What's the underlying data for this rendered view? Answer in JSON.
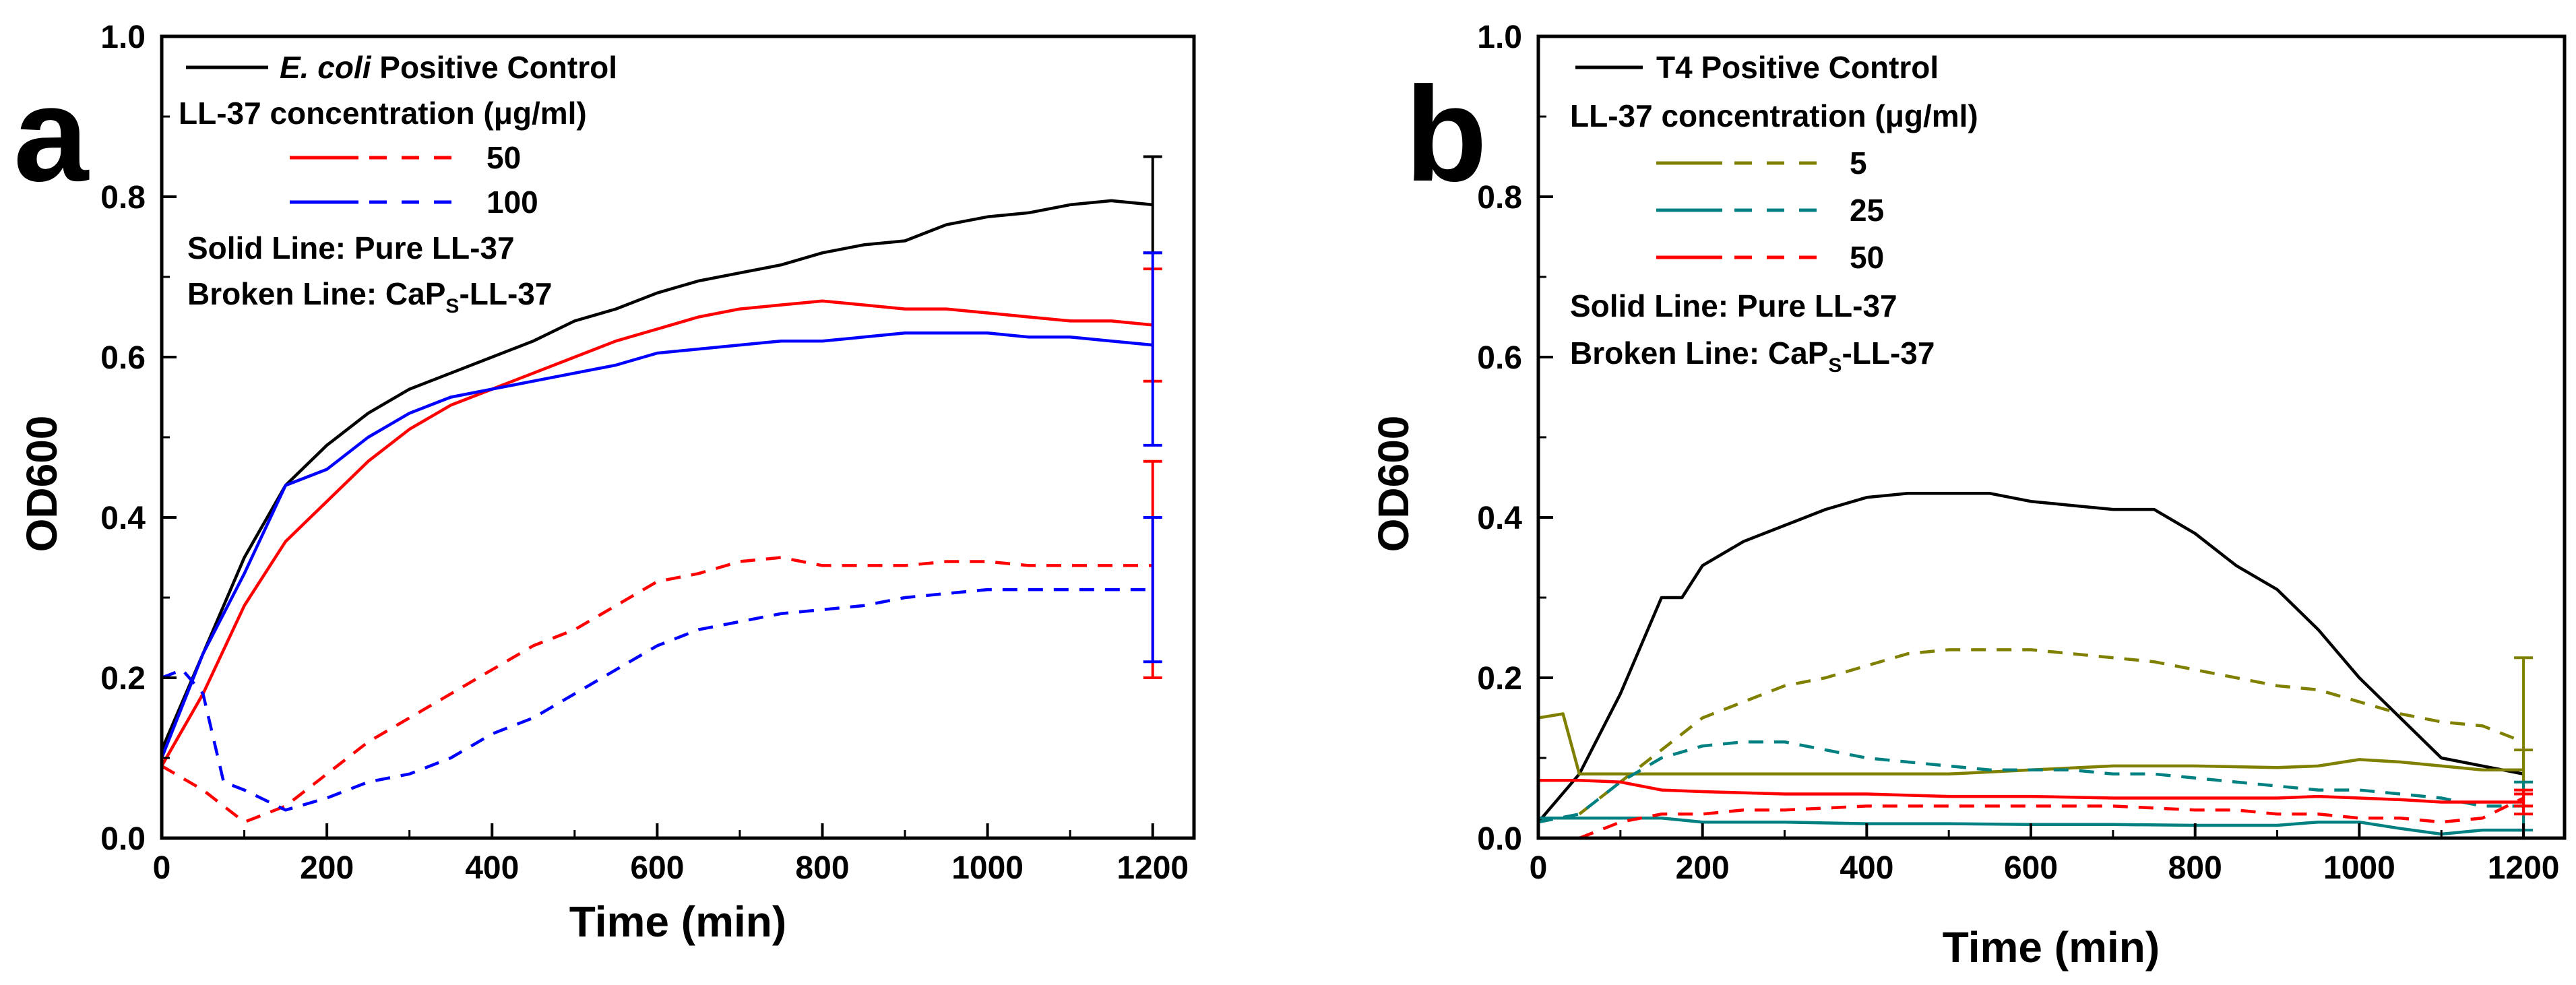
{
  "chart_data": [
    {
      "type": "line",
      "panel": "a",
      "xlabel": "Time (min)",
      "ylabel": "OD600",
      "xlim": [
        0,
        1250
      ],
      "ylim": [
        0,
        1.0
      ],
      "xticks": [
        "0",
        "200",
        "400",
        "600",
        "800",
        "1000",
        "1200"
      ],
      "xtick_values": [
        0,
        200,
        400,
        600,
        800,
        1000,
        1200
      ],
      "yticks": [
        "0.0",
        "0.2",
        "0.4",
        "0.6",
        "0.8",
        "1.0"
      ],
      "ytick_values": [
        0,
        0.2,
        0.4,
        0.6,
        0.8,
        1.0
      ],
      "legend": {
        "control_pre": "",
        "control_em": "E. coli",
        "control_post": " Positive Control",
        "header": "LL-37 concentration (μg/ml)",
        "entries": [
          "50",
          "100"
        ],
        "note_solid": "Solid Line: Pure LL-37",
        "note_broken_pre": "Broken Line: CaP",
        "note_broken_sub": "S",
        "note_broken_post": "-LL-37"
      },
      "series": [
        {
          "name": "E. coli Positive Control",
          "color": "#000000",
          "style": "solid",
          "x": [
            0,
            50,
            100,
            150,
            200,
            250,
            300,
            350,
            400,
            450,
            500,
            550,
            600,
            650,
            700,
            750,
            800,
            850,
            900,
            950,
            1000,
            1050,
            1100,
            1150,
            1200
          ],
          "y": [
            0.11,
            0.23,
            0.35,
            0.44,
            0.49,
            0.53,
            0.56,
            0.58,
            0.6,
            0.62,
            0.645,
            0.66,
            0.68,
            0.695,
            0.705,
            0.715,
            0.73,
            0.74,
            0.745,
            0.765,
            0.775,
            0.78,
            0.79,
            0.795,
            0.79
          ]
        },
        {
          "name": "50 Pure LL-37",
          "color": "#ff0000",
          "style": "solid",
          "x": [
            0,
            50,
            100,
            150,
            200,
            250,
            300,
            350,
            400,
            450,
            500,
            550,
            600,
            650,
            700,
            750,
            800,
            850,
            900,
            950,
            1000,
            1050,
            1100,
            1150,
            1200
          ],
          "y": [
            0.09,
            0.18,
            0.29,
            0.37,
            0.42,
            0.47,
            0.51,
            0.54,
            0.56,
            0.58,
            0.6,
            0.62,
            0.635,
            0.65,
            0.66,
            0.665,
            0.67,
            0.665,
            0.66,
            0.66,
            0.655,
            0.65,
            0.645,
            0.645,
            0.64
          ]
        },
        {
          "name": "100 Pure LL-37",
          "color": "#0000ff",
          "style": "solid",
          "x": [
            0,
            50,
            100,
            150,
            200,
            250,
            300,
            350,
            400,
            450,
            500,
            550,
            600,
            650,
            700,
            750,
            800,
            850,
            900,
            950,
            1000,
            1050,
            1100,
            1150,
            1200
          ],
          "y": [
            0.1,
            0.23,
            0.33,
            0.44,
            0.46,
            0.5,
            0.53,
            0.55,
            0.56,
            0.57,
            0.58,
            0.59,
            0.605,
            0.61,
            0.615,
            0.62,
            0.62,
            0.625,
            0.63,
            0.63,
            0.63,
            0.625,
            0.625,
            0.62,
            0.615
          ]
        },
        {
          "name": "50 CaPS-LL-37",
          "color": "#ff0000",
          "style": "dashed",
          "x": [
            0,
            50,
            100,
            150,
            200,
            250,
            300,
            350,
            400,
            450,
            500,
            550,
            600,
            650,
            700,
            750,
            800,
            850,
            900,
            950,
            1000,
            1050,
            1100,
            1150,
            1200
          ],
          "y": [
            0.09,
            0.06,
            0.02,
            0.04,
            0.08,
            0.12,
            0.15,
            0.18,
            0.21,
            0.24,
            0.26,
            0.29,
            0.32,
            0.33,
            0.345,
            0.35,
            0.34,
            0.34,
            0.34,
            0.345,
            0.345,
            0.34,
            0.34,
            0.34,
            0.34
          ]
        },
        {
          "name": "100 CaPS-LL-37",
          "color": "#0000ff",
          "style": "dashed",
          "x": [
            0,
            25,
            50,
            75,
            100,
            150,
            200,
            250,
            300,
            350,
            400,
            450,
            500,
            550,
            600,
            650,
            700,
            750,
            800,
            850,
            900,
            950,
            1000,
            1050,
            1100,
            1150,
            1200
          ],
          "y": [
            0.2,
            0.21,
            0.18,
            0.07,
            0.06,
            0.035,
            0.05,
            0.07,
            0.08,
            0.1,
            0.13,
            0.15,
            0.18,
            0.21,
            0.24,
            0.26,
            0.27,
            0.28,
            0.285,
            0.29,
            0.3,
            0.305,
            0.31,
            0.31,
            0.31,
            0.31,
            0.31
          ]
        }
      ],
      "error_bars": [
        {
          "x": 1200,
          "low": 0.73,
          "high": 0.85,
          "color": "#000000"
        },
        {
          "x": 1200,
          "low": 0.57,
          "high": 0.71,
          "color": "#ff0000"
        },
        {
          "x": 1200,
          "low": 0.49,
          "high": 0.73,
          "color": "#0000ff"
        },
        {
          "x": 1200,
          "low": 0.2,
          "high": 0.47,
          "color": "#ff0000"
        },
        {
          "x": 1200,
          "low": 0.22,
          "high": 0.4,
          "color": "#0000ff"
        }
      ]
    },
    {
      "type": "line",
      "panel": "b",
      "xlabel": "Time (min)",
      "ylabel": "OD600",
      "xlim": [
        0,
        1250
      ],
      "ylim": [
        0,
        1.0
      ],
      "xticks": [
        "0",
        "200",
        "400",
        "600",
        "800",
        "1000",
        "1200"
      ],
      "xtick_values": [
        0,
        200,
        400,
        600,
        800,
        1000,
        1200
      ],
      "yticks": [
        "0.0",
        "0.2",
        "0.4",
        "0.6",
        "0.8",
        "1.0"
      ],
      "ytick_values": [
        0,
        0.2,
        0.4,
        0.6,
        0.8,
        1.0
      ],
      "legend": {
        "control_pre": "T4 Positive Control",
        "control_em": "",
        "control_post": "",
        "header": "LL-37 concentration (μg/ml)",
        "entries": [
          "5",
          "25",
          "50"
        ],
        "note_solid": "Solid Line: Pure LL-37",
        "note_broken_pre": "Broken Line: CaP",
        "note_broken_sub": "S",
        "note_broken_post": "-LL-37"
      },
      "series": [
        {
          "name": "T4 Positive Control",
          "color": "#000000",
          "style": "solid",
          "x": [
            0,
            50,
            100,
            150,
            175,
            200,
            250,
            300,
            350,
            400,
            450,
            500,
            550,
            600,
            650,
            700,
            750,
            800,
            850,
            900,
            950,
            1000,
            1050,
            1100,
            1150,
            1200
          ],
          "y": [
            0.02,
            0.08,
            0.18,
            0.3,
            0.3,
            0.34,
            0.37,
            0.39,
            0.41,
            0.425,
            0.43,
            0.43,
            0.43,
            0.42,
            0.415,
            0.41,
            0.41,
            0.38,
            0.34,
            0.31,
            0.26,
            0.2,
            0.15,
            0.1,
            0.09,
            0.08
          ]
        },
        {
          "name": "5 Pure LL-37",
          "color": "#808000",
          "style": "solid",
          "x": [
            0,
            30,
            50,
            100,
            200,
            300,
            400,
            500,
            600,
            700,
            800,
            900,
            950,
            1000,
            1050,
            1100,
            1150,
            1200
          ],
          "y": [
            0.15,
            0.155,
            0.08,
            0.08,
            0.08,
            0.08,
            0.08,
            0.08,
            0.085,
            0.09,
            0.09,
            0.088,
            0.09,
            0.098,
            0.095,
            0.09,
            0.085,
            0.085
          ]
        },
        {
          "name": "5 CaPS-LL-37",
          "color": "#808000",
          "style": "dashed",
          "x": [
            50,
            100,
            150,
            200,
            250,
            300,
            350,
            400,
            450,
            500,
            550,
            600,
            650,
            700,
            750,
            800,
            850,
            900,
            950,
            1000,
            1050,
            1100,
            1150,
            1200
          ],
          "y": [
            0.03,
            0.07,
            0.11,
            0.15,
            0.17,
            0.19,
            0.2,
            0.215,
            0.23,
            0.235,
            0.235,
            0.235,
            0.23,
            0.225,
            0.22,
            0.21,
            0.2,
            0.19,
            0.185,
            0.17,
            0.155,
            0.145,
            0.14,
            0.12
          ]
        },
        {
          "name": "25 Pure LL-37",
          "color": "#008080",
          "style": "solid",
          "x": [
            0,
            50,
            100,
            150,
            200,
            300,
            400,
            500,
            600,
            700,
            800,
            900,
            950,
            1000,
            1050,
            1100,
            1150,
            1200
          ],
          "y": [
            0.025,
            0.025,
            0.025,
            0.025,
            0.02,
            0.02,
            0.018,
            0.018,
            0.017,
            0.017,
            0.016,
            0.016,
            0.02,
            0.02,
            0.012,
            0.005,
            0.01,
            0.01
          ]
        },
        {
          "name": "25 CaPS-LL-37",
          "color": "#008080",
          "style": "dashed",
          "x": [
            0,
            50,
            100,
            150,
            200,
            250,
            300,
            350,
            400,
            450,
            500,
            550,
            600,
            650,
            700,
            750,
            800,
            850,
            900,
            950,
            1000,
            1050,
            1100,
            1150,
            1200
          ],
          "y": [
            0.02,
            0.03,
            0.07,
            0.1,
            0.115,
            0.12,
            0.12,
            0.11,
            0.1,
            0.095,
            0.09,
            0.085,
            0.085,
            0.085,
            0.08,
            0.08,
            0.075,
            0.07,
            0.065,
            0.06,
            0.06,
            0.055,
            0.05,
            0.04,
            0.04
          ]
        },
        {
          "name": "50 Pure LL-37",
          "color": "#ff0000",
          "style": "solid",
          "x": [
            0,
            50,
            100,
            150,
            200,
            300,
            400,
            500,
            600,
            700,
            800,
            900,
            950,
            1000,
            1050,
            1100,
            1150,
            1200
          ],
          "y": [
            0.072,
            0.072,
            0.07,
            0.06,
            0.058,
            0.055,
            0.055,
            0.052,
            0.052,
            0.05,
            0.05,
            0.05,
            0.052,
            0.05,
            0.048,
            0.045,
            0.045,
            0.045
          ]
        },
        {
          "name": "50 CaPS-LL-37",
          "color": "#ff0000",
          "style": "dashed",
          "x": [
            50,
            100,
            150,
            200,
            250,
            300,
            400,
            500,
            600,
            700,
            800,
            850,
            900,
            950,
            1000,
            1050,
            1100,
            1150,
            1200
          ],
          "y": [
            0.0,
            0.02,
            0.03,
            0.03,
            0.035,
            0.035,
            0.04,
            0.04,
            0.04,
            0.04,
            0.035,
            0.035,
            0.03,
            0.03,
            0.025,
            0.025,
            0.02,
            0.025,
            0.05
          ]
        }
      ],
      "error_bars": [
        {
          "x": 1200,
          "low": 0.04,
          "high": 0.225,
          "color": "#808000"
        },
        {
          "x": 1200,
          "low": 0.0,
          "high": 0.11,
          "color": "#808000"
        },
        {
          "x": 1200,
          "low": 0.01,
          "high": 0.07,
          "color": "#008080"
        },
        {
          "x": 1200,
          "low": 0.03,
          "high": 0.06,
          "color": "#ff0000"
        },
        {
          "x": 1200,
          "low": 0.04,
          "high": 0.055,
          "color": "#ff0000"
        }
      ]
    }
  ]
}
